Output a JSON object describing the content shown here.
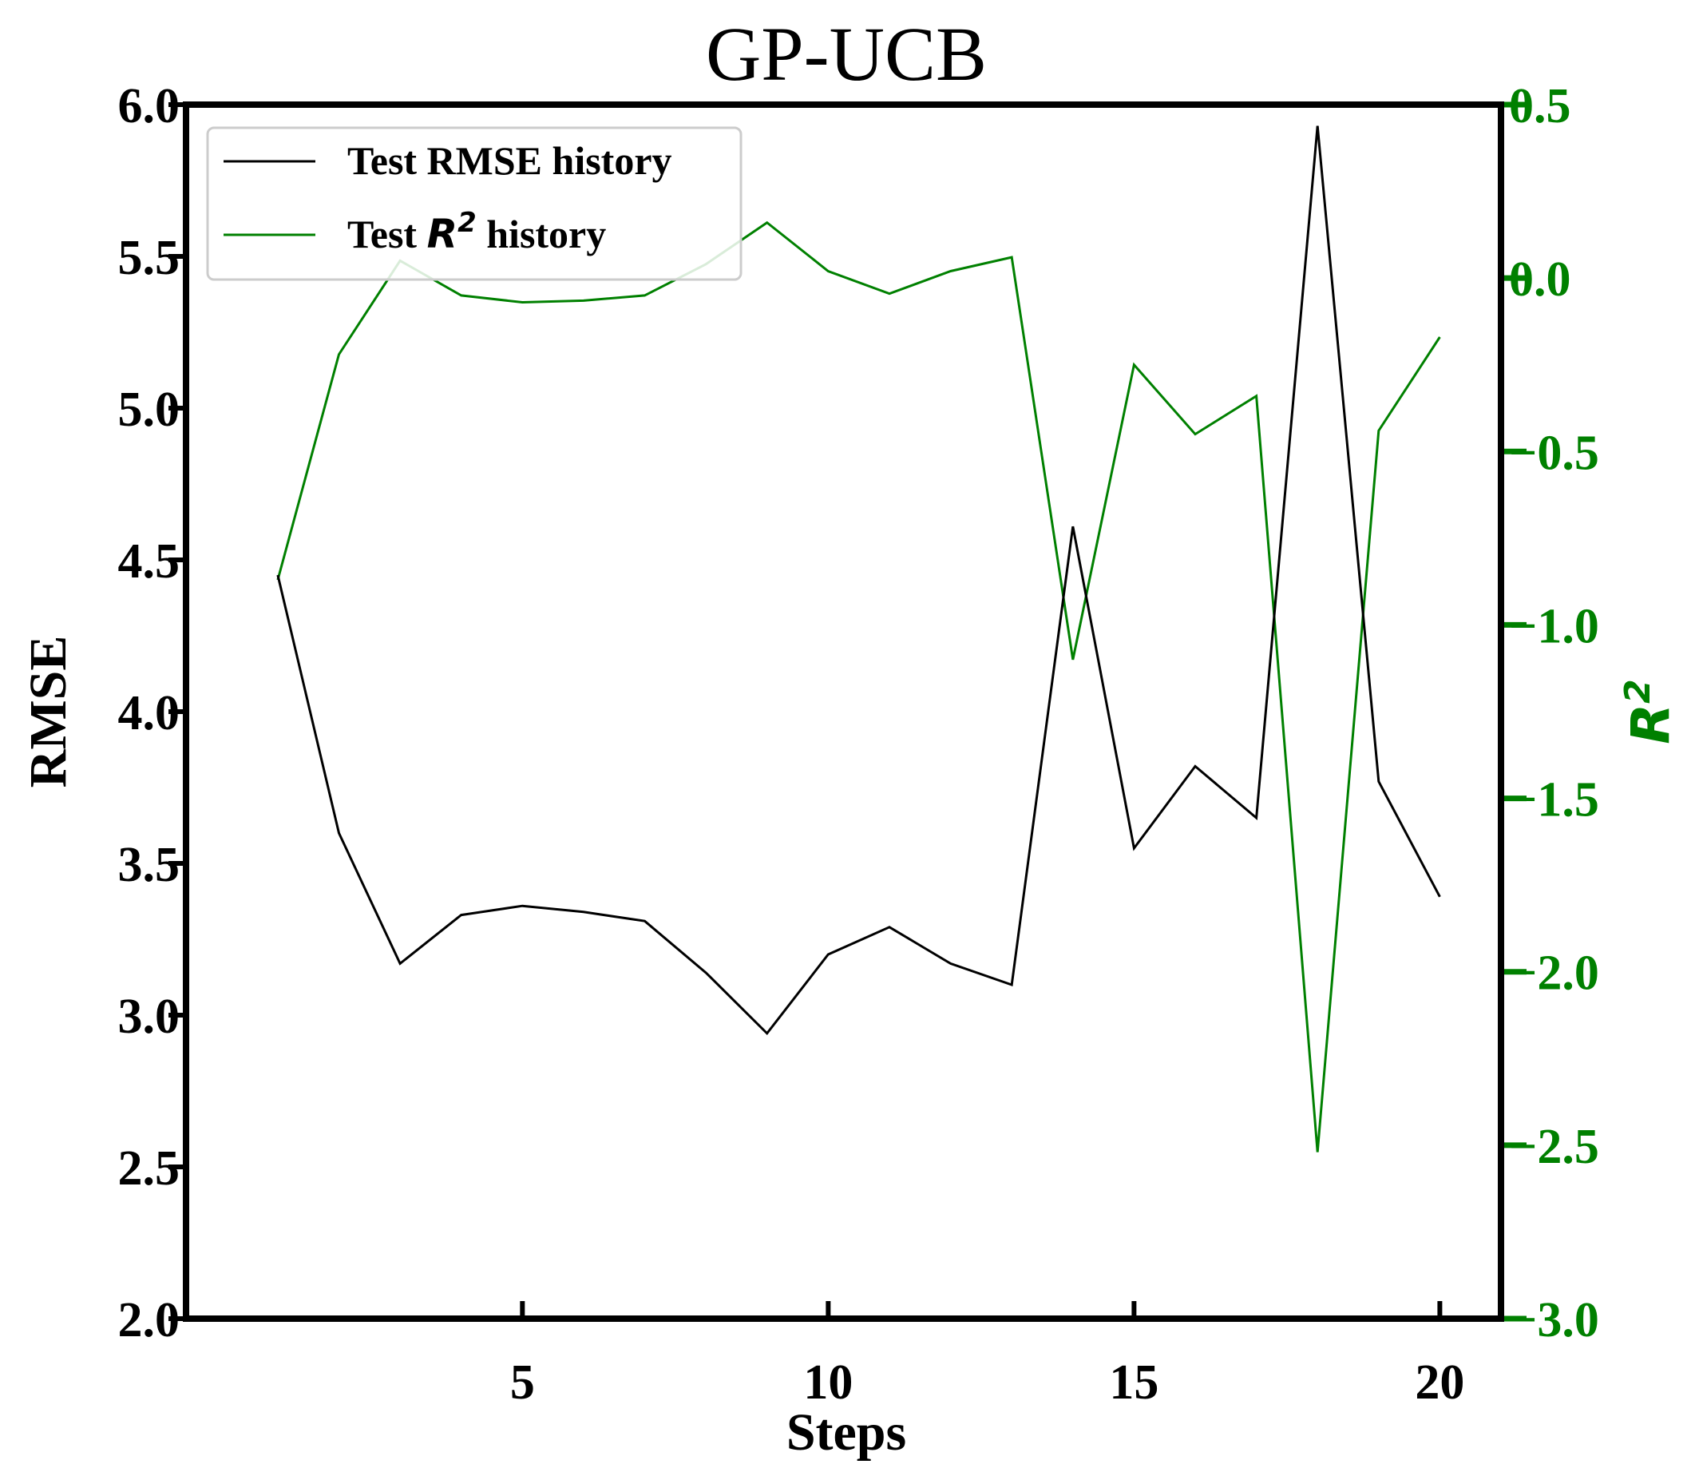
{
  "chart_data": {
    "type": "line",
    "title": "GP-UCB",
    "xlabel": "Steps",
    "ylabel_left": "RMSE",
    "ylabel_right_base": "R",
    "ylabel_right_sup": "2",
    "colors": {
      "rmse": "#000000",
      "r2": "#008000"
    },
    "xlim": [
      -0.5,
      21.0
    ],
    "ylim_left": [
      2.0,
      6.0
    ],
    "ylim_right": [
      -3.0,
      0.5
    ],
    "xticks": [
      5,
      10,
      15,
      20
    ],
    "xtick_labels": [
      "5",
      "10",
      "15",
      "20"
    ],
    "yticks_left": [
      2.0,
      2.5,
      3.0,
      3.5,
      4.0,
      4.5,
      5.0,
      5.5,
      6.0
    ],
    "ytick_labels_left": [
      "2.0",
      "2.5",
      "3.0",
      "3.5",
      "4.0",
      "4.5",
      "5.0",
      "5.5",
      "6.0"
    ],
    "yticks_right": [
      -3.0,
      -2.5,
      -2.0,
      -1.5,
      -1.0,
      -0.5,
      0.0,
      0.5
    ],
    "ytick_labels_right": [
      "−3.0",
      "−2.5",
      "−2.0",
      "−1.5",
      "−1.0",
      "−0.5",
      "0.0",
      "0.5"
    ],
    "grid": false,
    "legend_position": "upper-left",
    "x": [
      1,
      2,
      3,
      4,
      5,
      6,
      7,
      8,
      9,
      10,
      11,
      12,
      13,
      14,
      15,
      16,
      17,
      18,
      19,
      20
    ],
    "series": [
      {
        "name": "Test RMSE history",
        "axis": "left",
        "values": [
          4.45,
          3.6,
          3.17,
          3.33,
          3.36,
          3.34,
          3.31,
          3.14,
          2.94,
          3.2,
          3.29,
          3.17,
          3.1,
          4.61,
          3.55,
          3.82,
          3.65,
          5.93,
          3.77,
          3.39
        ]
      },
      {
        "name": "Test R² history",
        "axis": "right",
        "values": [
          -0.87,
          -0.22,
          0.05,
          -0.05,
          -0.07,
          -0.065,
          -0.05,
          0.04,
          0.16,
          0.02,
          -0.045,
          0.02,
          0.06,
          -1.1,
          -0.25,
          -0.45,
          -0.34,
          -2.52,
          -0.44,
          -0.17
        ]
      }
    ],
    "legend": {
      "rmse_text": "Test RMSE history",
      "r2_prefix": "Test ",
      "r2_symbol": "R",
      "r2_sup": "2",
      "r2_suffix": " history"
    }
  }
}
